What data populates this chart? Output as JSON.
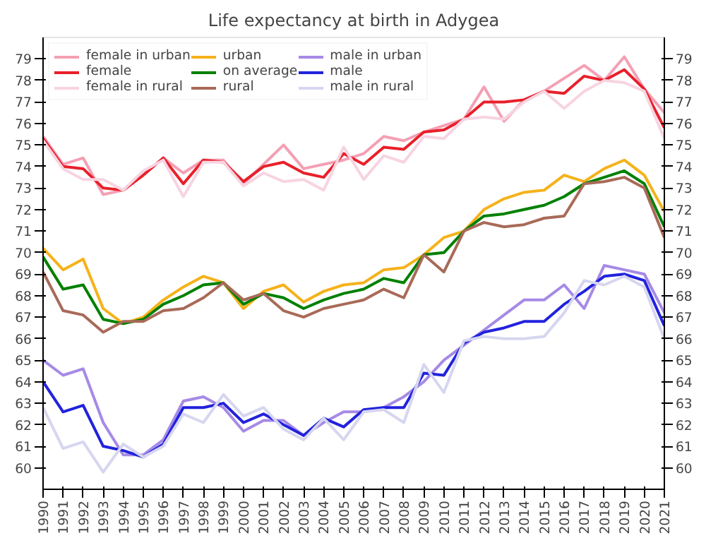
{
  "chart_data": {
    "type": "line",
    "title": "Life expectancy at birth in Adygea",
    "x": [
      1990,
      1991,
      1992,
      1993,
      1994,
      1995,
      1996,
      1997,
      1998,
      1999,
      2000,
      2001,
      2002,
      2003,
      2004,
      2005,
      2006,
      2007,
      2008,
      2009,
      2010,
      2011,
      2012,
      2013,
      2014,
      2015,
      2016,
      2017,
      2018,
      2019,
      2020,
      2021
    ],
    "xlim": [
      1990,
      2021
    ],
    "xticks": [
      1990,
      1991,
      1992,
      1993,
      1994,
      1995,
      1996,
      1997,
      1998,
      1999,
      2000,
      2001,
      2002,
      2003,
      2004,
      2005,
      2006,
      2007,
      2008,
      2009,
      2010,
      2011,
      2012,
      2013,
      2014,
      2015,
      2016,
      2017,
      2018,
      2019,
      2020,
      2021
    ],
    "ylim": [
      59,
      80
    ],
    "yticks": [
      60,
      61,
      62,
      63,
      64,
      65,
      66,
      67,
      68,
      69,
      70,
      71,
      72,
      73,
      74,
      75,
      76,
      77,
      78,
      79
    ],
    "y2lim": [
      59,
      80
    ],
    "y2ticks": [
      60,
      61,
      62,
      63,
      64,
      65,
      66,
      67,
      68,
      69,
      70,
      71,
      72,
      73,
      74,
      75,
      76,
      77,
      78,
      79
    ],
    "legend": "top left",
    "grid": false,
    "marker": "none",
    "series": [
      {
        "name": "female in urban",
        "color": "#f4a0b4",
        "values": [
          75.4,
          74.1,
          74.4,
          72.7,
          72.9,
          73.6,
          74.4,
          73.7,
          74.3,
          74.3,
          73.2,
          74.1,
          75.0,
          73.9,
          74.1,
          74.3,
          74.6,
          75.4,
          75.2,
          75.6,
          75.9,
          76.2,
          77.7,
          76.1,
          77.1,
          77.5,
          78.1,
          78.7,
          78.0,
          79.1,
          77.6,
          76.5
        ]
      },
      {
        "name": "female",
        "color": "#e8202a",
        "values": [
          75.3,
          74.0,
          73.9,
          73.0,
          72.9,
          73.6,
          74.4,
          73.2,
          74.3,
          74.2,
          73.3,
          74.0,
          74.2,
          73.7,
          73.5,
          74.6,
          74.1,
          74.9,
          74.8,
          75.6,
          75.7,
          76.2,
          77.0,
          77.0,
          77.1,
          77.5,
          77.4,
          78.2,
          78.0,
          78.5,
          77.6,
          75.8
        ]
      },
      {
        "name": "female in rural",
        "color": "#f7d4e2",
        "values": [
          75.2,
          73.9,
          73.4,
          73.4,
          72.9,
          73.8,
          74.3,
          72.6,
          74.2,
          74.2,
          73.1,
          73.7,
          73.3,
          73.4,
          72.9,
          74.9,
          73.4,
          74.5,
          74.2,
          75.4,
          75.3,
          76.2,
          76.3,
          76.2,
          77.0,
          77.5,
          76.7,
          77.5,
          78.0,
          77.9,
          77.5,
          75.3
        ]
      },
      {
        "name": "urban",
        "color": "#f5b21a",
        "values": [
          70.2,
          69.2,
          69.7,
          67.4,
          66.7,
          67.0,
          67.8,
          68.4,
          68.9,
          68.6,
          67.4,
          68.2,
          68.5,
          67.7,
          68.2,
          68.5,
          68.6,
          69.2,
          69.3,
          69.9,
          70.7,
          71.0,
          72.0,
          72.5,
          72.8,
          72.9,
          73.6,
          73.3,
          73.9,
          74.3,
          73.6,
          71.9
        ]
      },
      {
        "name": "on average",
        "color": "#008000",
        "values": [
          69.8,
          68.3,
          68.5,
          66.9,
          66.7,
          66.9,
          67.6,
          68.0,
          68.5,
          68.6,
          67.6,
          68.1,
          67.9,
          67.4,
          67.8,
          68.1,
          68.3,
          68.8,
          68.6,
          69.9,
          70.0,
          71.0,
          71.7,
          71.8,
          72.0,
          72.2,
          72.6,
          73.2,
          73.5,
          73.8,
          73.2,
          71.2
        ]
      },
      {
        "name": "rural",
        "color": "#a86a58",
        "values": [
          69.1,
          67.3,
          67.1,
          66.3,
          66.8,
          66.8,
          67.3,
          67.4,
          67.9,
          68.6,
          67.8,
          68.1,
          67.3,
          67.0,
          67.4,
          67.6,
          67.8,
          68.3,
          67.9,
          69.9,
          69.1,
          71.0,
          71.4,
          71.2,
          71.3,
          71.6,
          71.7,
          73.2,
          73.3,
          73.5,
          73.0,
          70.7
        ]
      },
      {
        "name": "male in urban",
        "color": "#a68ae6",
        "values": [
          65.0,
          64.3,
          64.6,
          62.1,
          60.6,
          60.6,
          61.3,
          63.1,
          63.3,
          62.8,
          61.7,
          62.2,
          62.2,
          61.5,
          62.1,
          62.6,
          62.6,
          62.8,
          63.3,
          64.0,
          65.0,
          65.7,
          66.4,
          67.1,
          67.8,
          67.8,
          68.5,
          67.4,
          69.4,
          69.2,
          69.0,
          67.2
        ]
      },
      {
        "name": "male",
        "color": "#2222dd",
        "values": [
          64.0,
          62.6,
          62.9,
          61.0,
          60.8,
          60.5,
          61.1,
          62.8,
          62.8,
          63.0,
          62.1,
          62.5,
          62.0,
          61.5,
          62.3,
          61.9,
          62.7,
          62.8,
          62.8,
          64.4,
          64.3,
          65.8,
          66.3,
          66.5,
          66.8,
          66.8,
          67.6,
          68.2,
          68.9,
          69.0,
          68.7,
          66.6
        ]
      },
      {
        "name": "male in rural",
        "color": "#d6d6f0",
        "values": [
          62.8,
          60.9,
          61.2,
          59.8,
          61.1,
          60.5,
          61.0,
          62.5,
          62.1,
          63.4,
          62.4,
          62.8,
          61.8,
          61.3,
          62.3,
          61.3,
          62.6,
          62.7,
          62.1,
          64.8,
          63.5,
          65.9,
          66.1,
          66.0,
          66.0,
          66.1,
          67.2,
          68.7,
          68.5,
          68.9,
          68.4,
          66.0
        ]
      }
    ]
  }
}
